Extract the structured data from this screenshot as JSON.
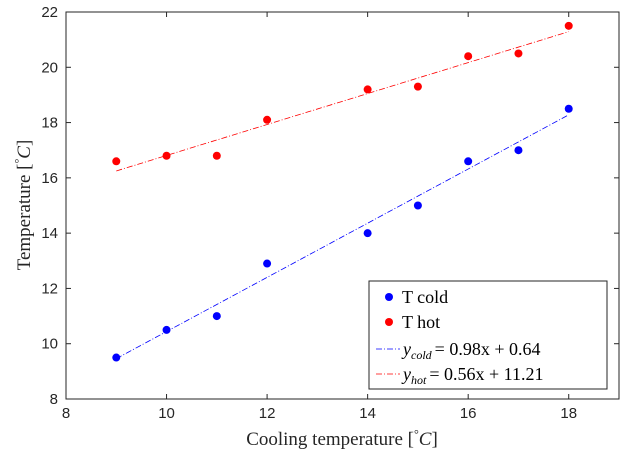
{
  "chart_data": {
    "type": "scatter",
    "xlabel": "Cooling temperature [°C]",
    "ylabel": "Temperature [°C]",
    "xlim": [
      8,
      19
    ],
    "ylim": [
      8,
      22
    ],
    "xticks": [
      8,
      10,
      12,
      14,
      16,
      18
    ],
    "yticks": [
      8,
      10,
      12,
      14,
      16,
      18,
      20,
      22
    ],
    "grid": false,
    "legend_position": "bottom-right",
    "series": [
      {
        "name": "T cold",
        "kind": "points",
        "color": "#0000ff",
        "x": [
          9,
          10,
          11,
          12,
          14,
          15,
          16,
          17,
          18
        ],
        "y": [
          9.5,
          10.5,
          11.0,
          12.9,
          14.0,
          15.0,
          16.6,
          17.0,
          18.5
        ]
      },
      {
        "name": "T hot",
        "kind": "points",
        "color": "#ff0000",
        "x": [
          9,
          10,
          11,
          12,
          14,
          15,
          16,
          17,
          18
        ],
        "y": [
          16.6,
          16.8,
          16.8,
          18.1,
          19.2,
          19.3,
          20.4,
          20.5,
          21.5
        ]
      },
      {
        "name": "y_cold = 0.98x + 0.64",
        "kind": "fit-line",
        "color": "#0000ff",
        "slope": 0.98,
        "intercept": 0.64,
        "x_range": [
          9,
          18
        ]
      },
      {
        "name": "y_hot = 0.56x + 11.21",
        "kind": "fit-line",
        "color": "#ff0000",
        "slope": 0.56,
        "intercept": 11.21,
        "x_range": [
          9,
          18
        ]
      }
    ],
    "legend": {
      "cold_label": "T cold",
      "hot_label": "T hot",
      "cold_fit": {
        "var": "y",
        "sub": "cold",
        "rhs": "= 0.98x + 0.64"
      },
      "hot_fit": {
        "var": "y",
        "sub": "hot",
        "rhs": "= 0.56x + 11.21"
      }
    },
    "axis_text": {
      "x_main": "Cooling temperature ",
      "y_main": "Temperature ",
      "unit_open": "[",
      "unit_deg": "°",
      "unit_c": "C",
      "unit_close": "]"
    }
  }
}
